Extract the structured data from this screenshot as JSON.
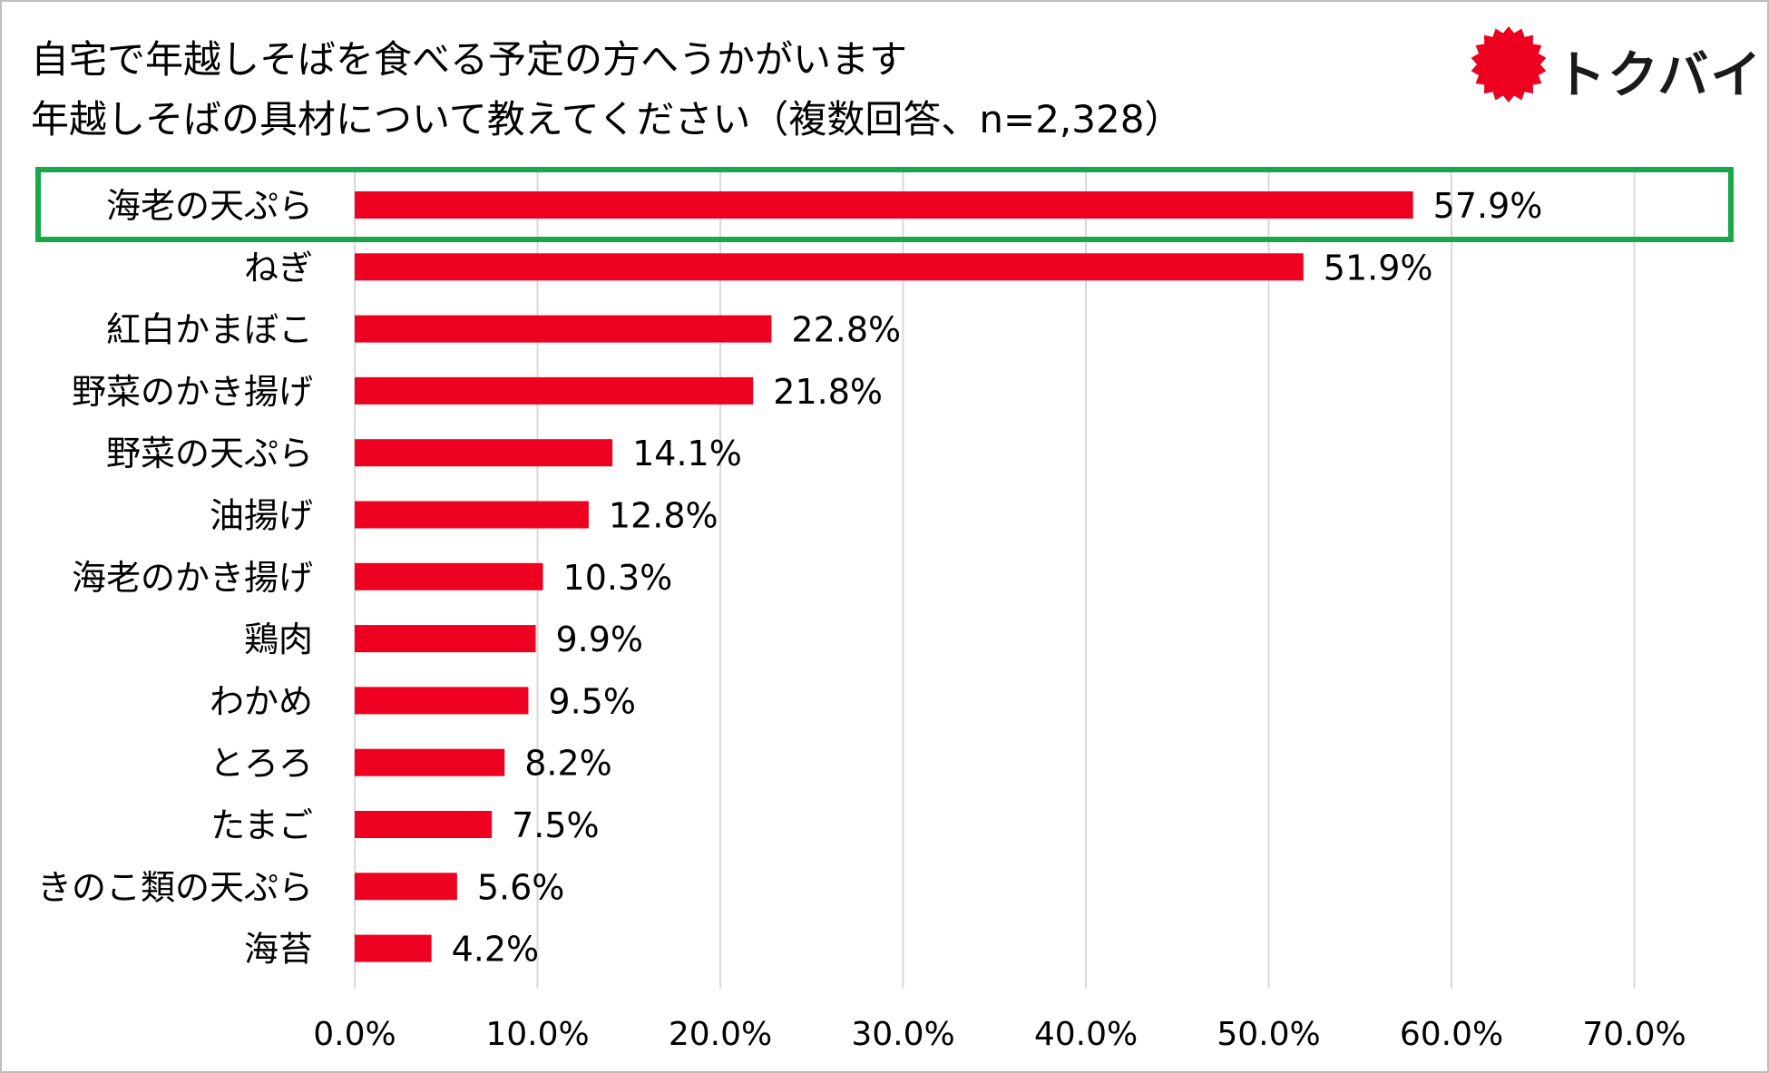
{
  "colors": {
    "bar": "#EE0020",
    "highlight_border": "#1AA64A",
    "gridline": "#D9D9D9",
    "logo_burst": "#EE0020"
  },
  "logo": {
    "text": "トクバイ",
    "icon": "starburst-icon"
  },
  "chart_data": {
    "type": "bar",
    "orientation": "horizontal",
    "title": [
      "自宅で年越しそばを食べる予定の方へうかがいます",
      "年越しそばの具材について教えてください（複数回答、n=2,328）"
    ],
    "categories": [
      "海老の天ぷら",
      "ねぎ",
      "紅白かまぼこ",
      "野菜のかき揚げ",
      "野菜の天ぷら",
      "油揚げ",
      "海老のかき揚げ",
      "鶏肉",
      "わかめ",
      "とろろ",
      "たまご",
      "きのこ類の天ぷら",
      "海苔"
    ],
    "values": [
      57.9,
      51.9,
      22.8,
      21.8,
      14.1,
      12.8,
      10.3,
      9.9,
      9.5,
      8.2,
      7.5,
      5.6,
      4.2
    ],
    "value_labels": [
      "57.9%",
      "51.9%",
      "22.8%",
      "21.8%",
      "14.1%",
      "12.8%",
      "10.3%",
      "9.9%",
      "9.5%",
      "8.2%",
      "7.5%",
      "5.6%",
      "4.2%"
    ],
    "xlim": [
      0,
      70
    ],
    "xticks": [
      0,
      10,
      20,
      30,
      40,
      50,
      60,
      70
    ],
    "xtick_labels": [
      "0.0%",
      "10.0%",
      "20.0%",
      "30.0%",
      "40.0%",
      "50.0%",
      "60.0%",
      "70.0%"
    ],
    "grid": true,
    "highlighted_category": "海老の天ぷら",
    "xlabel": "",
    "ylabel": ""
  }
}
